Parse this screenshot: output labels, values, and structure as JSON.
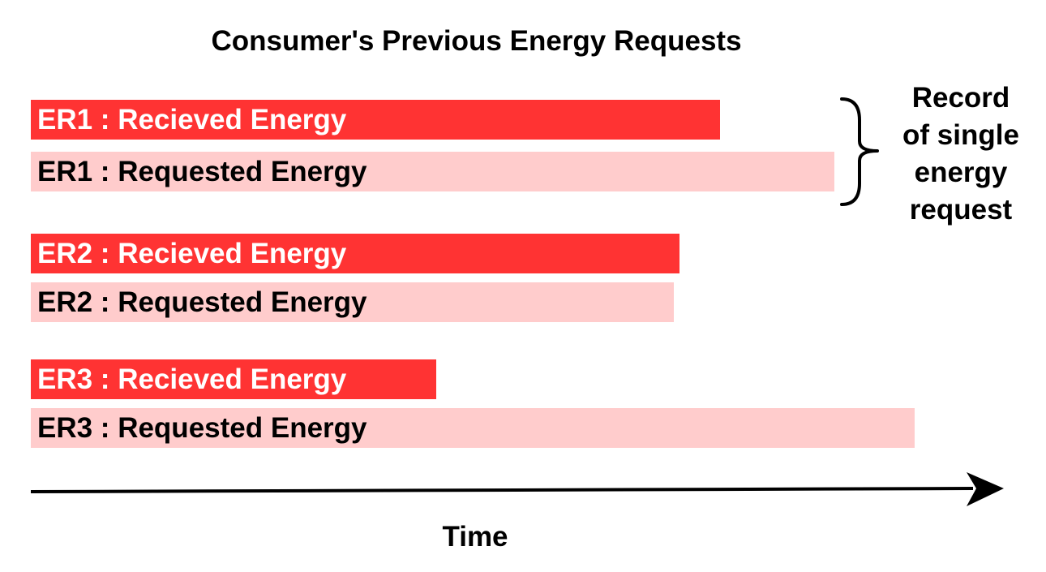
{
  "title": "Consumer's Previous Energy Requests",
  "colors": {
    "received": "#ff3333",
    "requested": "#ffcccc",
    "axis": "#000000"
  },
  "requests": [
    {
      "id": "ER1",
      "received_label": "ER1 : Recieved Energy",
      "requested_label": "ER1 : Requested Energy"
    },
    {
      "id": "ER2",
      "received_label": "ER2 : Recieved Energy",
      "requested_label": "ER2 : Requested Energy"
    },
    {
      "id": "ER3",
      "received_label": "ER3 : Recieved Energy",
      "requested_label": "ER3 : Requested Energy"
    }
  ],
  "brace": {
    "lines": [
      "Record",
      "of single",
      "energy",
      "request"
    ]
  },
  "axis": {
    "label": "Time"
  }
}
